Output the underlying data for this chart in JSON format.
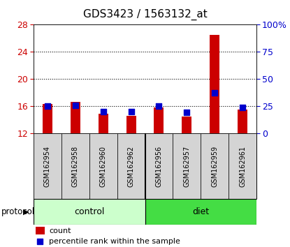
{
  "title": "GDS3423 / 1563132_at",
  "samples": [
    "GSM162954",
    "GSM162958",
    "GSM162960",
    "GSM162962",
    "GSM162956",
    "GSM162957",
    "GSM162959",
    "GSM162961"
  ],
  "red_values": [
    16.3,
    16.65,
    14.85,
    14.6,
    15.8,
    14.5,
    26.5,
    15.55
  ],
  "blue_values": [
    16.0,
    16.1,
    15.25,
    15.15,
    16.0,
    15.1,
    18.0,
    15.8
  ],
  "y_min": 12,
  "y_max": 28,
  "y_ticks_left": [
    12,
    16,
    20,
    24,
    28
  ],
  "right_ticks_val": [
    0,
    25,
    50,
    75,
    100
  ],
  "right_tick_labels": [
    "0",
    "25",
    "50",
    "75",
    "100%"
  ],
  "bar_color": "#cc0000",
  "square_color": "#0000cc",
  "left_tick_color": "#cc0000",
  "right_tick_color": "#0000cc",
  "bar_width": 0.35,
  "square_size": 35,
  "grid_dotted_at": [
    16,
    20,
    24
  ],
  "control_color": "#ccffcc",
  "diet_color": "#44dd44",
  "label_bg_color": "#d4d4d4",
  "title_fontsize": 11,
  "legend_red": "count",
  "legend_blue": "percentile rank within the sample"
}
